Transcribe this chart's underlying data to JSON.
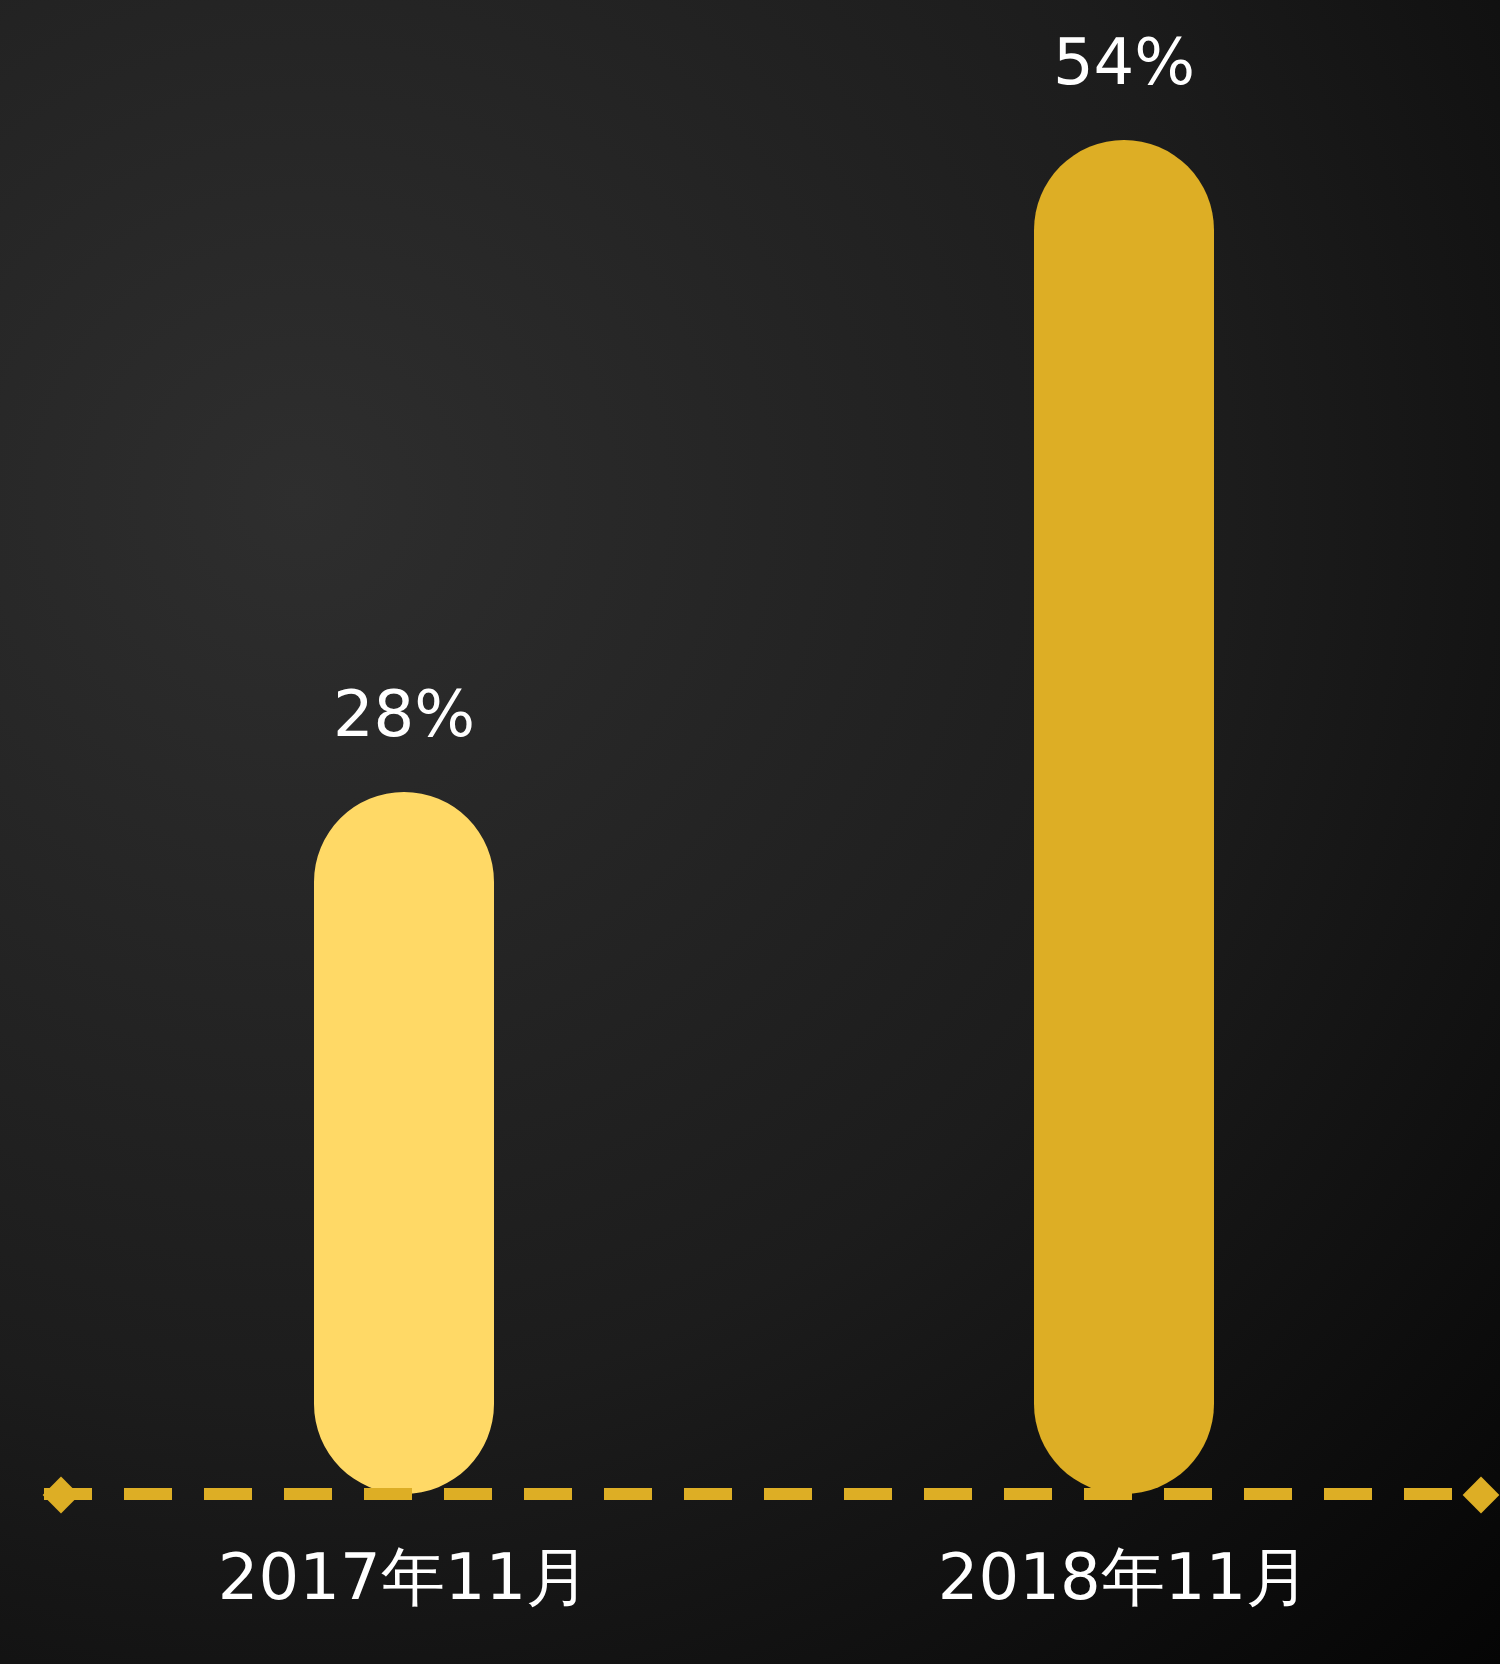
{
  "chart_data": {
    "type": "bar",
    "categories": [
      "2017年11月",
      "2018年11月"
    ],
    "values": [
      28,
      54
    ],
    "colors": [
      "#ffd966",
      "#ddae25"
    ],
    "value_labels": [
      "28%",
      "54%"
    ],
    "grid": false,
    "legend": false
  }
}
